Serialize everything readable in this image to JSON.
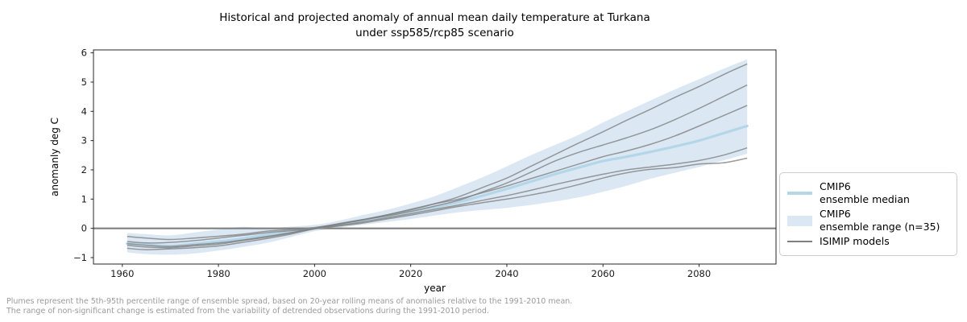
{
  "title": {
    "line1": "Historical and projected anomaly of annual mean daily temperature at Turkana",
    "line2": "under ssp585/rcp85 scenario"
  },
  "legend": {
    "items": [
      {
        "line1": "CMIP6",
        "line2": "ensemble median",
        "handle": "median-line"
      },
      {
        "line1": "CMIP6",
        "line2": "ensemble range (n=35)",
        "handle": "range-patch"
      },
      {
        "line1": "ISIMIP models",
        "line2": "",
        "handle": "model-line"
      }
    ]
  },
  "footnote": {
    "line1": "Plumes represent the 5th-95th percentile range of ensemble spread, based on 20-year rolling means of anomalies relative to the 1991-2010 mean.",
    "line2": "The range of non-significant change is estimated from the variability of detrended observations during the 1991-2010 period."
  },
  "colors": {
    "band": "#dbe8f4",
    "median": "#b4d6e9",
    "model": "#7f7f7f",
    "zero_line": "#808080",
    "spine": "#262626",
    "tick_label": "#1a1a1a"
  },
  "chart_data": {
    "type": "line",
    "title": "Historical and projected anomaly of annual mean daily temperature at Turkana under ssp585/rcp85 scenario",
    "xlabel": "year",
    "ylabel": "anomanly deg C",
    "xlim": [
      1954,
      2096
    ],
    "ylim": [
      -1.22,
      6.1
    ],
    "xticks": [
      1960,
      1980,
      2000,
      2020,
      2040,
      2060,
      2080
    ],
    "yticks": [
      -1,
      0,
      1,
      2,
      3,
      4,
      5,
      6
    ],
    "grid": false,
    "legend_position": "outside-right",
    "zero_line": 0,
    "years": [
      1961,
      1965,
      1970,
      1975,
      1980,
      1985,
      1990,
      1995,
      2000,
      2005,
      2010,
      2015,
      2020,
      2025,
      2030,
      2035,
      2040,
      2045,
      2050,
      2055,
      2060,
      2065,
      2070,
      2075,
      2080,
      2085,
      2090
    ],
    "band": {
      "name": "CMIP6 ensemble range (n=35)",
      "upper": [
        -0.16,
        -0.2,
        -0.24,
        -0.14,
        -0.04,
        0.05,
        0.0,
        0.06,
        0.12,
        0.26,
        0.45,
        0.63,
        0.85,
        1.1,
        1.42,
        1.75,
        2.12,
        2.5,
        2.85,
        3.2,
        3.62,
        4.0,
        4.38,
        4.75,
        5.1,
        5.45,
        5.78
      ],
      "lower": [
        -0.82,
        -0.88,
        -0.9,
        -0.86,
        -0.76,
        -0.64,
        -0.5,
        -0.3,
        -0.1,
        0.02,
        0.12,
        0.22,
        0.32,
        0.44,
        0.55,
        0.63,
        0.7,
        0.8,
        0.92,
        1.06,
        1.25,
        1.46,
        1.7,
        1.9,
        2.1,
        2.32,
        2.55
      ]
    },
    "median": {
      "name": "CMIP6 ensemble median",
      "values": [
        -0.52,
        -0.56,
        -0.6,
        -0.53,
        -0.45,
        -0.35,
        -0.22,
        -0.12,
        0.0,
        0.12,
        0.25,
        0.4,
        0.55,
        0.72,
        0.9,
        1.12,
        1.35,
        1.6,
        1.85,
        2.08,
        2.3,
        2.45,
        2.62,
        2.8,
        3.0,
        3.25,
        3.5
      ]
    },
    "models": [
      {
        "name": "ISIMIP model 1",
        "values": [
          -0.45,
          -0.5,
          -0.48,
          -0.42,
          -0.33,
          -0.24,
          -0.15,
          -0.08,
          0.0,
          0.14,
          0.3,
          0.46,
          0.63,
          0.84,
          1.08,
          1.4,
          1.72,
          2.12,
          2.52,
          2.92,
          3.3,
          3.7,
          4.08,
          4.48,
          4.85,
          5.25,
          5.62
        ]
      },
      {
        "name": "ISIMIP model 2",
        "values": [
          -0.52,
          -0.58,
          -0.62,
          -0.56,
          -0.5,
          -0.4,
          -0.28,
          -0.15,
          0.0,
          0.16,
          0.3,
          0.42,
          0.58,
          0.76,
          0.96,
          1.25,
          1.55,
          1.92,
          2.3,
          2.6,
          2.85,
          3.1,
          3.38,
          3.72,
          4.1,
          4.5,
          4.9
        ]
      },
      {
        "name": "ISIMIP model 3",
        "values": [
          -0.28,
          -0.33,
          -0.38,
          -0.33,
          -0.27,
          -0.2,
          -0.1,
          -0.04,
          0.03,
          0.15,
          0.28,
          0.46,
          0.65,
          0.84,
          1.0,
          1.22,
          1.45,
          1.7,
          1.95,
          2.2,
          2.45,
          2.65,
          2.88,
          3.16,
          3.5,
          3.85,
          4.2
        ]
      },
      {
        "name": "ISIMIP model 4",
        "values": [
          -0.58,
          -0.64,
          -0.66,
          -0.6,
          -0.54,
          -0.42,
          -0.3,
          -0.16,
          0.0,
          0.1,
          0.22,
          0.36,
          0.5,
          0.65,
          0.8,
          0.96,
          1.12,
          1.3,
          1.5,
          1.68,
          1.85,
          2.0,
          2.1,
          2.2,
          2.32,
          2.5,
          2.75
        ]
      },
      {
        "name": "ISIMIP model 5",
        "values": [
          -0.68,
          -0.73,
          -0.7,
          -0.66,
          -0.6,
          -0.48,
          -0.35,
          -0.2,
          -0.02,
          0.08,
          0.18,
          0.32,
          0.45,
          0.6,
          0.75,
          0.88,
          1.0,
          1.14,
          1.3,
          1.5,
          1.72,
          1.9,
          2.02,
          2.08,
          2.2,
          2.24,
          2.4
        ]
      }
    ]
  }
}
